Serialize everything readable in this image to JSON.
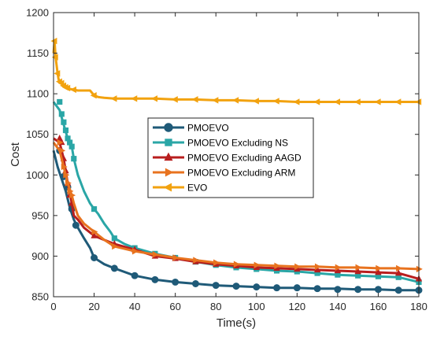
{
  "chart_data": {
    "type": "line",
    "xlabel": "Time(s)",
    "ylabel": "Cost",
    "xlim": [
      0,
      180
    ],
    "ylim": [
      850,
      1200
    ],
    "xticks": [
      0,
      20,
      40,
      60,
      80,
      100,
      120,
      140,
      160,
      180
    ],
    "yticks": [
      850,
      900,
      950,
      1000,
      1050,
      1100,
      1150,
      1200
    ],
    "grid": false,
    "legend": "center",
    "series": [
      {
        "name": "PMOEVO",
        "color": "#1f5a78",
        "marker": "circle",
        "x": [
          0,
          2,
          4,
          6,
          8,
          10,
          12,
          15,
          18,
          20,
          25,
          30,
          40,
          50,
          60,
          70,
          80,
          90,
          100,
          110,
          120,
          130,
          140,
          150,
          160,
          170,
          180
        ],
        "y": [
          1030,
          1010,
          995,
          980,
          960,
          945,
          935,
          922,
          910,
          898,
          890,
          885,
          876,
          871,
          868,
          866,
          864,
          863,
          862,
          861,
          861,
          860,
          860,
          859,
          859,
          858,
          858
        ],
        "markers_x": [
          3,
          5,
          7,
          9,
          11,
          20,
          30,
          40,
          50,
          60,
          70,
          80,
          90,
          100,
          110,
          120,
          130,
          140,
          150,
          160,
          170,
          180
        ],
        "markers_y": [
          1030,
          998,
          985,
          958,
          938,
          898,
          885,
          876,
          871,
          868,
          866,
          864,
          863,
          862,
          861,
          861,
          860,
          859,
          859,
          859,
          858,
          858
        ]
      },
      {
        "name": "PMOEVO Excluding NS",
        "color": "#2aa6a6",
        "marker": "square",
        "x": [
          0,
          3,
          5,
          7,
          9,
          10,
          12,
          15,
          18,
          20,
          22,
          25,
          28,
          30,
          35,
          40,
          50,
          60,
          70,
          80,
          90,
          100,
          110,
          120,
          130,
          140,
          150,
          160,
          170,
          180
        ],
        "y": [
          1090,
          1080,
          1062,
          1045,
          1035,
          1020,
          1000,
          980,
          965,
          958,
          952,
          940,
          930,
          922,
          915,
          910,
          903,
          898,
          893,
          889,
          886,
          884,
          882,
          881,
          879,
          877,
          876,
          875,
          874,
          868
        ],
        "markers_x": [
          3,
          4,
          5,
          6,
          7,
          8,
          9,
          10,
          20,
          30,
          40,
          50,
          60,
          70,
          80,
          90,
          100,
          110,
          120,
          130,
          140,
          150,
          160,
          170,
          180
        ],
        "markers_y": [
          1090,
          1075,
          1065,
          1055,
          1045,
          1040,
          1035,
          1020,
          958,
          922,
          910,
          903,
          898,
          893,
          889,
          886,
          884,
          882,
          881,
          879,
          877,
          876,
          875,
          874,
          868
        ]
      },
      {
        "name": "PMOEVO Excluding AAGD",
        "color": "#b81e1e",
        "marker": "triangle-up",
        "x": [
          0,
          3,
          5,
          7,
          9,
          10,
          12,
          15,
          20,
          25,
          30,
          40,
          50,
          60,
          70,
          80,
          90,
          100,
          110,
          120,
          130,
          140,
          150,
          160,
          170,
          180
        ],
        "y": [
          1045,
          1040,
          1020,
          990,
          965,
          950,
          945,
          935,
          925,
          920,
          915,
          908,
          900,
          897,
          893,
          890,
          888,
          886,
          885,
          884,
          883,
          882,
          881,
          880,
          879,
          872
        ],
        "markers_x": [
          3,
          4,
          5,
          6,
          7,
          8,
          9,
          20,
          30,
          40,
          50,
          60,
          70,
          80,
          90,
          100,
          110,
          120,
          130,
          140,
          150,
          160,
          170,
          180
        ],
        "markers_y": [
          1045,
          1040,
          1020,
          1005,
          990,
          975,
          965,
          925,
          915,
          908,
          900,
          897,
          893,
          890,
          888,
          886,
          885,
          884,
          883,
          882,
          881,
          880,
          879,
          872
        ]
      },
      {
        "name": "PMOEVO Excluding ARM",
        "color": "#e8731f",
        "marker": "triangle-right",
        "x": [
          0,
          3,
          5,
          7,
          9,
          10,
          12,
          15,
          20,
          25,
          30,
          40,
          50,
          60,
          70,
          80,
          90,
          100,
          110,
          120,
          130,
          140,
          150,
          160,
          170,
          180
        ],
        "y": [
          1040,
          1030,
          1010,
          990,
          975,
          965,
          950,
          940,
          930,
          920,
          912,
          906,
          902,
          898,
          895,
          892,
          890,
          889,
          888,
          887,
          887,
          886,
          886,
          885,
          885,
          884
        ],
        "markers_x": [
          3,
          4,
          5,
          6,
          7,
          8,
          9,
          20,
          30,
          40,
          50,
          60,
          70,
          80,
          90,
          100,
          110,
          120,
          130,
          140,
          150,
          160,
          170,
          180
        ],
        "markers_y": [
          1040,
          1030,
          1010,
          1000,
          990,
          980,
          975,
          930,
          912,
          906,
          902,
          898,
          895,
          892,
          890,
          889,
          888,
          887,
          887,
          886,
          886,
          885,
          885,
          884
        ]
      },
      {
        "name": "EVO",
        "color": "#f2a20f",
        "marker": "triangle-left",
        "x": [
          0,
          0.5,
          1,
          1.5,
          2,
          2.5,
          3,
          4,
          5,
          6,
          8,
          10,
          12,
          15,
          18,
          20,
          22,
          25,
          30,
          40,
          50,
          60,
          70,
          80,
          90,
          100,
          110,
          120,
          130,
          140,
          150,
          160,
          170,
          180
        ],
        "y": [
          1150,
          1165,
          1145,
          1135,
          1125,
          1118,
          1115,
          1113,
          1110,
          1108,
          1106,
          1105,
          1104,
          1104,
          1104,
          1098,
          1096,
          1095,
          1094,
          1094,
          1094,
          1093,
          1093,
          1092,
          1092,
          1091,
          1091,
          1090,
          1090,
          1090,
          1090,
          1090,
          1090,
          1090
        ],
        "markers_x": [
          0.5,
          1,
          2,
          3,
          4,
          5,
          6,
          7,
          10,
          20,
          30,
          40,
          50,
          60,
          70,
          80,
          90,
          100,
          110,
          120,
          130,
          140,
          150,
          160,
          170,
          180
        ],
        "markers_y": [
          1165,
          1145,
          1125,
          1115,
          1113,
          1110,
          1108,
          1107,
          1105,
          1098,
          1094,
          1094,
          1094,
          1093,
          1093,
          1092,
          1092,
          1091,
          1091,
          1090,
          1090,
          1090,
          1090,
          1090,
          1090,
          1090
        ]
      }
    ]
  }
}
